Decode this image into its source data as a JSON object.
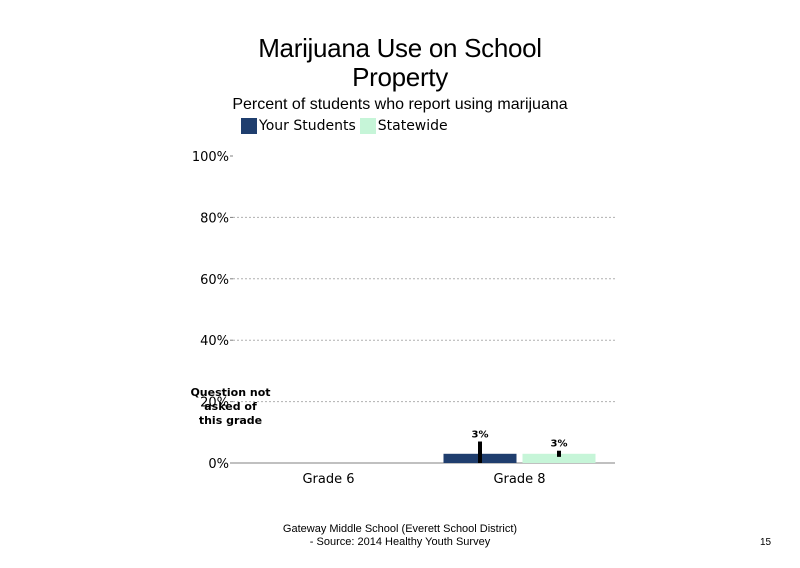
{
  "chart_data": {
    "type": "bar",
    "title_line1": "Marijuana Use on School",
    "title_line2": "Property",
    "subtitle": "Percent of students who report using marijuana",
    "categories": [
      "Grade 6",
      "Grade 8"
    ],
    "series": [
      {
        "name": "Your Students",
        "color": "#1f3e6e",
        "values": [
          null,
          3
        ],
        "error_low": [
          null,
          0
        ],
        "error_high": [
          null,
          7
        ]
      },
      {
        "name": "Statewide",
        "color": "#c6f5d8",
        "values": [
          null,
          3
        ],
        "error_low": [
          null,
          2
        ],
        "error_high": [
          null,
          4
        ]
      }
    ],
    "data_labels": [
      [
        null,
        "3%"
      ],
      [
        null,
        "3%"
      ]
    ],
    "ylim": [
      0,
      100
    ],
    "yticks": [
      "0%",
      "20%",
      "40%",
      "60%",
      "80%",
      "100%"
    ],
    "grid": true,
    "legend_position": "top-left",
    "annotation": {
      "category": "Grade 6",
      "lines": [
        "Question not",
        "asked of",
        "this grade"
      ]
    }
  },
  "footer": {
    "line1": "Gateway Middle  School  (Everett School District)",
    "line2": "- Source: 2014 Healthy  Youth Survey"
  },
  "page_number": "15"
}
